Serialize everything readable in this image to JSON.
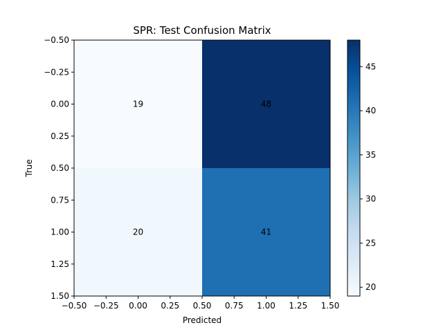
{
  "chart_data": {
    "type": "heatmap",
    "title": "SPR: Test Confusion Matrix",
    "xlabel": "Predicted",
    "ylabel": "True",
    "matrix": [
      [
        19,
        48
      ],
      [
        20,
        41
      ]
    ],
    "xlim": [
      -0.5,
      1.5
    ],
    "ylim": [
      1.5,
      -0.5
    ],
    "x_ticks": [
      -0.5,
      -0.25,
      0.0,
      0.25,
      0.5,
      0.75,
      1.0,
      1.25,
      1.5
    ],
    "x_tick_labels": [
      "−0.50",
      "−0.25",
      "0.00",
      "0.25",
      "0.50",
      "0.75",
      "1.00",
      "1.25",
      "1.50"
    ],
    "y_ticks": [
      -0.5,
      -0.25,
      0.0,
      0.25,
      0.5,
      0.75,
      1.0,
      1.25,
      1.5
    ],
    "y_tick_labels": [
      "−0.50",
      "−0.25",
      "0.00",
      "0.25",
      "0.50",
      "0.75",
      "1.00",
      "1.25",
      "1.50"
    ],
    "colormap": "Blues",
    "colorbar": {
      "min": 19,
      "max": 48,
      "ticks": [
        20,
        25,
        30,
        35,
        40,
        45
      ],
      "tick_labels": [
        "20",
        "25",
        "30",
        "35",
        "40",
        "45"
      ]
    },
    "grid": false
  }
}
